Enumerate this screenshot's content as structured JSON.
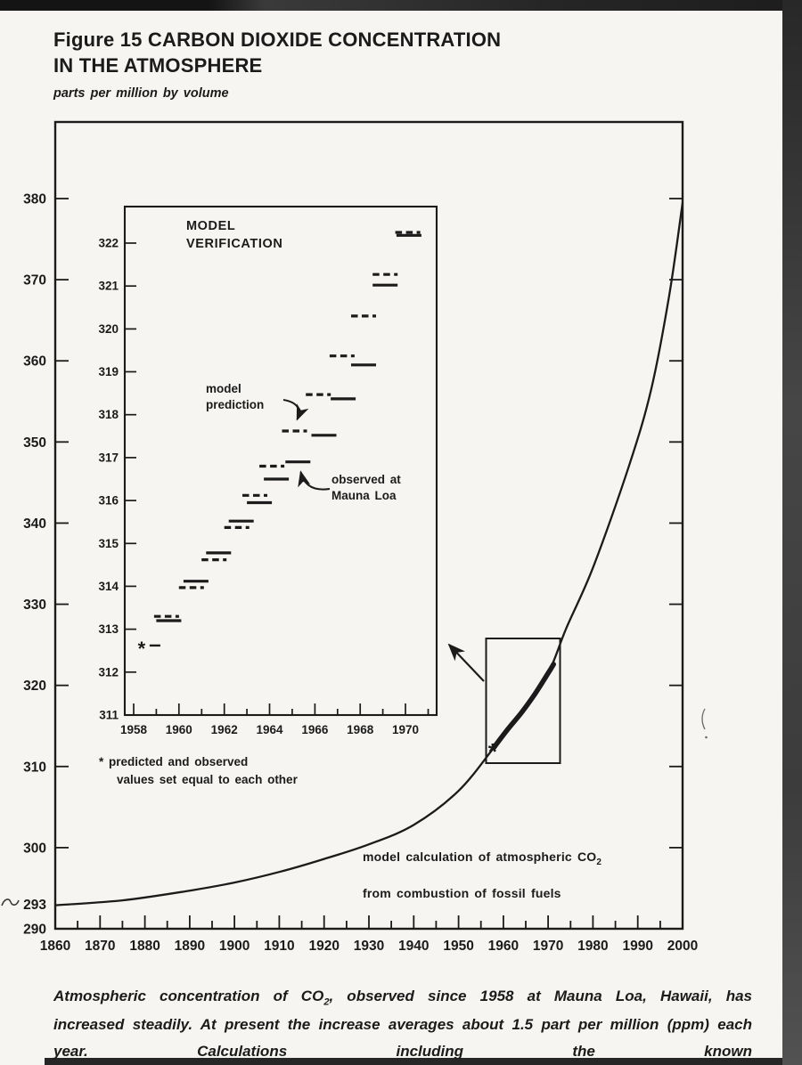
{
  "labels": {
    "figure_title": "Figure 15 CARBON DIOXIDE CONCENTRATION\nIN THE ATMOSPHERE",
    "units": "parts per million by volume",
    "inset_title": "MODEL\nVERIFICATION",
    "model_prediction": "model\nprediction",
    "observed_at": "observed at\nMauna Loa",
    "asterisk_note": "* predicted and observed\nvalues set equal to each other",
    "model_calc_line1": "model calculation of atmospheric CO",
    "model_calc_sub": "2",
    "model_calc_line2": "from combustion of fossil fuels",
    "caption_part1": "Atmospheric concentration of CO",
    "caption_sub": "2",
    "caption_part2": ", observed since 1958 at Mauna Loa, Hawaii, has increased steadily. At present the increase averages about 1.5 part per million (ppm) each year. Calculations including the known"
  },
  "chart_data": [
    {
      "id": "main",
      "type": "line",
      "title": "Figure 15 CARBON DIOXIDE CONCENTRATION IN THE ATMOSPHERE",
      "ylabel": "parts per million by volume",
      "xlim": [
        1860,
        2000
      ],
      "ylim": [
        290,
        389
      ],
      "x_ticks": [
        1860,
        1870,
        1880,
        1890,
        1900,
        1910,
        1920,
        1930,
        1940,
        1950,
        1960,
        1970,
        1980,
        1990,
        2000
      ],
      "x_minor_step": 5,
      "y_ticks": [
        290,
        300,
        310,
        320,
        330,
        340,
        350,
        360,
        370,
        380
      ],
      "y_extra_label": 293,
      "grid": false,
      "legend": "none",
      "series": [
        {
          "name": "model calculation of atmospheric CO2 from combustion of fossil fuels",
          "style": "thin solid curve",
          "points": [
            [
              1860,
              292.9
            ],
            [
              1875,
              293.5
            ],
            [
              1890,
              294.7
            ],
            [
              1900,
              295.7
            ],
            [
              1910,
              297.0
            ],
            [
              1920,
              298.6
            ],
            [
              1930,
              300.4
            ],
            [
              1940,
              302.8
            ],
            [
              1950,
              307.0
            ],
            [
              1958,
              312.4
            ],
            [
              1964,
              316.6
            ],
            [
              1970,
              321.5
            ],
            [
              1974,
              327.0
            ],
            [
              1980,
              334.5
            ],
            [
              1988,
              347.0
            ],
            [
              1993,
              356.5
            ],
            [
              1997,
              368.0
            ],
            [
              2000,
              379.5
            ]
          ]
        },
        {
          "name": "observed at Mauna Loa (bold overlay on curve, 1958-1971)",
          "style": "thick solid overlay",
          "points": [
            [
              1957.9,
              312.35
            ],
            [
              1961,
              314.6
            ],
            [
              1964,
              316.6
            ],
            [
              1967,
              318.9
            ],
            [
              1970,
              321.5
            ],
            [
              1971.2,
              322.6
            ]
          ]
        }
      ],
      "asterisk_marker": {
        "year": 1957.6,
        "ppm": 312.3
      },
      "inset_source_box": {
        "year_range": [
          1956.2,
          1972.7
        ],
        "ppm_range": [
          310.6,
          326.1
        ]
      }
    },
    {
      "id": "inset",
      "type": "line-segments",
      "title": "MODEL VERIFICATION",
      "xlim": [
        1957.6,
        1971.7
      ],
      "ylim": [
        311,
        322.85
      ],
      "x_ticks": [
        1958,
        1960,
        1962,
        1964,
        1966,
        1968,
        1970
      ],
      "x_minor_ticks": [
        1959,
        1961,
        1963,
        1965,
        1967,
        1969,
        1971
      ],
      "y_ticks": [
        311,
        312,
        313,
        314,
        315,
        316,
        317,
        318,
        319,
        320,
        321,
        322
      ],
      "grid": false,
      "series": [
        {
          "name": "model prediction",
          "style": "dashed segments",
          "segments": [
            [
              1959.45,
              313.3
            ],
            [
              1960.55,
              313.97
            ],
            [
              1961.55,
              314.62
            ],
            [
              1962.55,
              315.37
            ],
            [
              1963.35,
              316.12
            ],
            [
              1964.1,
              316.8
            ],
            [
              1965.1,
              317.62
            ],
            [
              1966.15,
              318.47
            ],
            [
              1967.2,
              319.37
            ],
            [
              1968.15,
              320.3
            ],
            [
              1969.1,
              321.27
            ],
            [
              1970.1,
              322.25
            ]
          ]
        },
        {
          "name": "observed at Mauna Loa",
          "style": "solid segments",
          "segments": [
            [
              1959.55,
              313.2
            ],
            [
              1960.75,
              314.12
            ],
            [
              1961.75,
              314.78
            ],
            [
              1962.75,
              315.52
            ],
            [
              1963.55,
              315.95
            ],
            [
              1964.3,
              316.5
            ],
            [
              1965.25,
              316.9
            ],
            [
              1966.4,
              317.52
            ],
            [
              1967.25,
              318.37
            ],
            [
              1968.15,
              319.16
            ],
            [
              1969.1,
              321.02
            ],
            [
              1970.15,
              322.18
            ]
          ]
        }
      ],
      "asterisk_marker": {
        "year": 1958.35,
        "ppm": 312.62,
        "note": "predicted and observed values set equal to each other"
      }
    }
  ]
}
